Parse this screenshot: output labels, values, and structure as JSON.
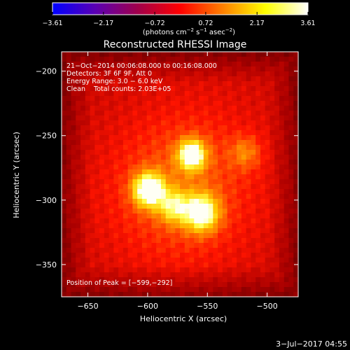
{
  "chart_data": {
    "type": "heatmap",
    "title": "Reconstructed RHESSI Image",
    "xlabel": "Heliocentric X (arcsec)",
    "ylabel": "Heliocentric Y (arcsec)",
    "xlim": [
      -672,
      -474
    ],
    "ylim": [
      -375,
      -185
    ],
    "x_ticks": [
      -650,
      -600,
      -550,
      -500
    ],
    "y_ticks": [
      -200,
      -250,
      -300,
      -350
    ],
    "x_tick_labels": [
      "−650",
      "−600",
      "−550",
      "−500"
    ],
    "y_tick_labels": [
      "−200",
      "−250",
      "−300",
      "−350"
    ],
    "colorbar": {
      "ticks": [
        -3.61,
        -2.17,
        -0.72,
        0.72,
        2.17,
        3.61
      ],
      "tick_labels": [
        "−3.61",
        "−2.17",
        "−0.72",
        "0.72",
        "2.17",
        "3.61"
      ],
      "unit_text": "(photons cm",
      "unit_sup1": "−2",
      "unit_mid1": " s",
      "unit_sup2": "−1",
      "unit_mid2": " asec",
      "unit_sup3": "−2",
      "unit_end": ")",
      "colormap": [
        "#0000ff",
        "#5a00b4",
        "#a0004b",
        "#ff0000",
        "#ff8000",
        "#ffff00",
        "#ffffff"
      ]
    },
    "background_level": 0.3,
    "sources": [
      {
        "x": -563,
        "y": -265,
        "peak": 0.95,
        "sigma": 8
      },
      {
        "x": -599,
        "y": -292,
        "peak": 1.0,
        "sigma": 9
      },
      {
        "x": -555,
        "y": -310,
        "peak": 0.88,
        "sigma": 10
      },
      {
        "x": -578,
        "y": -305,
        "peak": 0.55,
        "sigma": 9
      },
      {
        "x": -518,
        "y": -263,
        "peak": 0.3,
        "sigma": 9
      }
    ]
  },
  "info": {
    "line1": "21−Oct−2014 00:06:08.000 to 00:16:08.000",
    "line2": "Detectors: 3F 6F 9F, Att 0",
    "line3": "Energy Range: 3.0 − 6.0 keV",
    "line4": "Clean    Total counts: 2.03E+05",
    "peak": "Position of Peak = [−599,−292]"
  },
  "footer": {
    "date": "3−Jul−2017 04:55"
  }
}
